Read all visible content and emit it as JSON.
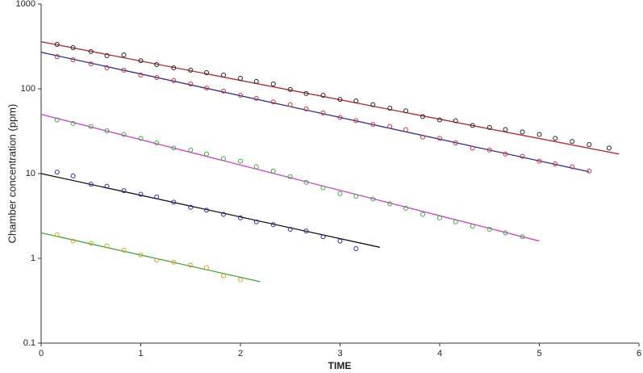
{
  "chart_data": {
    "type": "scatter",
    "xlabel": "TIME",
    "ylabel": "Chamber concentration (ppm)",
    "xlim": [
      0,
      6
    ],
    "xticks": [
      0,
      1,
      2,
      3,
      4,
      5,
      6
    ],
    "ylim": [
      0.1,
      1000
    ],
    "yticks": [
      0.1,
      1,
      10,
      100,
      1000
    ],
    "ylog": true,
    "series": [
      {
        "mode": "line",
        "color": "#b3262a",
        "x": [
          0,
          5.8
        ],
        "values": [
          360,
          17
        ]
      },
      {
        "mode": "line",
        "color": "#2a2a9a",
        "x": [
          0,
          5.5
        ],
        "values": [
          270,
          10.5
        ]
      },
      {
        "mode": "line",
        "color": "#cc3fcc",
        "x": [
          0,
          5
        ],
        "values": [
          50,
          1.6
        ]
      },
      {
        "mode": "line",
        "color": "#111111",
        "x": [
          0,
          3.4
        ],
        "values": [
          10,
          1.35
        ]
      },
      {
        "mode": "line",
        "color": "#3aaa3a",
        "x": [
          0,
          2.2
        ],
        "values": [
          2,
          0.53
        ]
      },
      {
        "mode": "markers",
        "color": "#222222",
        "x": [
          0.16,
          0.32,
          0.5,
          0.66,
          0.83,
          1,
          1.16,
          1.33,
          1.5,
          1.66,
          1.83,
          2,
          2.16,
          2.33,
          2.5,
          2.66,
          2.83,
          3,
          3.16,
          3.33,
          3.5,
          3.66,
          3.83,
          4,
          4.16,
          4.33,
          4.5,
          4.66,
          4.83,
          5,
          5.16,
          5.33,
          5.5,
          5.7
        ],
        "values": [
          334,
          306,
          275,
          246,
          251,
          215,
          193,
          177,
          166,
          155,
          145,
          133,
          122,
          114,
          98,
          88,
          84,
          75,
          72,
          65,
          59,
          55,
          47,
          43,
          42,
          37,
          35,
          33,
          31,
          29,
          26,
          24,
          22,
          20
        ]
      },
      {
        "mode": "markers",
        "color": "#d23030",
        "x": [
          0.16,
          0.32,
          0.5,
          0.66,
          0.83,
          1,
          1.16,
          1.33,
          1.5,
          1.66,
          1.83,
          2,
          2.16,
          2.33,
          2.5,
          2.66,
          2.83,
          3,
          3.16,
          3.33,
          3.5,
          3.66,
          3.83,
          4,
          4.16,
          4.33,
          4.5,
          4.66,
          4.83,
          5,
          5.16,
          5.33,
          5.5
        ],
        "values": [
          240,
          220,
          197,
          177,
          166,
          145,
          136,
          125,
          114,
          102,
          94,
          84,
          77,
          70,
          65,
          58,
          52,
          46,
          42,
          38,
          36,
          33,
          27,
          26,
          23,
          20,
          19,
          17,
          16,
          14,
          13,
          12,
          10.7
        ]
      },
      {
        "mode": "markers",
        "color": "#3aaa3a",
        "x": [
          0.16,
          0.32,
          0.5,
          0.66,
          0.83,
          1,
          1.16,
          1.33,
          1.5,
          1.66,
          1.83,
          2,
          2.16,
          2.33,
          2.5,
          2.66,
          2.83,
          3,
          3.16,
          3.33,
          3.5,
          3.66,
          3.83,
          4,
          4.16,
          4.33,
          4.5,
          4.66,
          4.83
        ],
        "values": [
          43,
          39,
          36,
          32,
          29,
          26,
          23,
          20,
          19,
          17,
          15,
          14,
          12,
          10.7,
          9.2,
          7.9,
          6.8,
          5.8,
          5.4,
          5.0,
          4.4,
          3.9,
          3.3,
          3.0,
          2.7,
          2.4,
          2.2,
          2.0,
          1.8
        ]
      },
      {
        "mode": "markers",
        "color": "#2a2ab0",
        "x": [
          0.16,
          0.32,
          0.5,
          0.66,
          0.83,
          1,
          1.16,
          1.33,
          1.5,
          1.66,
          1.83,
          2,
          2.16,
          2.33,
          2.5,
          2.66,
          2.83,
          3,
          3.16
        ],
        "values": [
          10.4,
          9.4,
          7.5,
          7.1,
          6.3,
          5.7,
          5.3,
          4.6,
          4.0,
          3.7,
          3.3,
          3.0,
          2.7,
          2.5,
          2.2,
          2.1,
          1.8,
          1.6,
          1.3
        ]
      },
      {
        "mode": "markers",
        "color": "#d4a020",
        "x": [
          0.16,
          0.32,
          0.5,
          0.66,
          0.83,
          1,
          1.16,
          1.33,
          1.5,
          1.66,
          1.83,
          2
        ],
        "values": [
          1.9,
          1.6,
          1.5,
          1.4,
          1.25,
          1.1,
          0.95,
          0.9,
          0.83,
          0.78,
          0.62,
          0.56
        ]
      }
    ]
  }
}
